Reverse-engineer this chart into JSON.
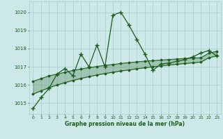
{
  "hours": [
    0,
    1,
    2,
    3,
    4,
    5,
    6,
    7,
    8,
    9,
    10,
    11,
    12,
    13,
    14,
    15,
    16,
    17,
    18,
    19,
    20,
    21,
    22,
    23
  ],
  "pressure": [
    1014.7,
    1015.3,
    1015.8,
    1016.6,
    1016.9,
    1016.5,
    1017.7,
    1017.0,
    1018.2,
    1017.0,
    1019.85,
    1020.0,
    1019.3,
    1018.5,
    1017.7,
    1016.8,
    1017.15,
    1017.2,
    1017.3,
    1017.4,
    1017.55,
    1017.75,
    1017.9,
    1017.6
  ],
  "trend_upper": [
    1016.2,
    1016.35,
    1016.5,
    1016.6,
    1016.7,
    1016.8,
    1016.88,
    1016.95,
    1017.02,
    1017.08,
    1017.13,
    1017.18,
    1017.23,
    1017.27,
    1017.31,
    1017.34,
    1017.37,
    1017.4,
    1017.43,
    1017.46,
    1017.48,
    1017.5,
    1017.75,
    1017.85
  ],
  "trend_lower": [
    1015.5,
    1015.68,
    1015.85,
    1016.0,
    1016.13,
    1016.25,
    1016.36,
    1016.46,
    1016.55,
    1016.63,
    1016.7,
    1016.77,
    1016.83,
    1016.89,
    1016.95,
    1017.0,
    1017.05,
    1017.1,
    1017.14,
    1017.18,
    1017.22,
    1017.26,
    1017.5,
    1017.6
  ],
  "line_color": "#1a5c1a",
  "bg_color": "#cce8e8",
  "grid_color": "#aacccc",
  "text_color": "#1a5c1a",
  "ylabel_values": [
    1015,
    1016,
    1017,
    1018,
    1019,
    1020
  ],
  "xlabel": "Graphe pression niveau de la mer (hPa)",
  "ylim": [
    1014.4,
    1020.6
  ],
  "xlim": [
    -0.5,
    23.5
  ]
}
